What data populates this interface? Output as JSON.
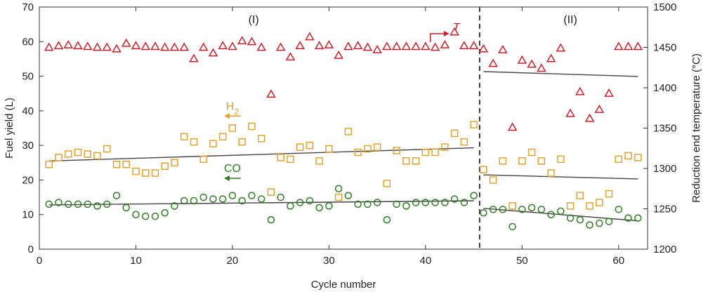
{
  "chart_data": {
    "type": "scatter",
    "title": "",
    "xlabel": "Cycle number",
    "ylabel": "Fuel yield (L)",
    "y2label": "Reduction end temperature (°C)",
    "xlim": [
      0,
      63
    ],
    "ylim": [
      0,
      70
    ],
    "y2lim": [
      1200,
      1500
    ],
    "x_ticks": [
      0,
      10,
      20,
      30,
      40,
      50,
      60
    ],
    "y_ticks": [
      0,
      10,
      20,
      30,
      40,
      50,
      60,
      70
    ],
    "y2_ticks": [
      1200,
      1250,
      1300,
      1350,
      1400,
      1450,
      1500
    ],
    "divider_x": 45.6,
    "regions": [
      "(I)",
      "(II)"
    ],
    "series": [
      {
        "name": "T",
        "axis": "right",
        "marker": "triangle",
        "color": "#cc1f2a",
        "x": [
          1,
          2,
          3,
          4,
          5,
          6,
          7,
          8,
          9,
          10,
          11,
          12,
          13,
          14,
          15,
          16,
          17,
          18,
          19,
          20,
          21,
          22,
          23,
          24,
          25,
          26,
          27,
          28,
          29,
          30,
          31,
          32,
          33,
          34,
          35,
          36,
          37,
          38,
          39,
          40,
          41,
          42,
          43,
          44,
          45,
          46,
          47,
          48,
          49,
          50,
          51,
          52,
          53,
          54,
          55,
          56,
          57,
          58,
          59,
          60,
          61,
          62
        ],
        "values": [
          1450,
          1452,
          1453,
          1452,
          1451,
          1450,
          1450,
          1448,
          1455,
          1452,
          1451,
          1451,
          1450,
          1450,
          1450,
          1436,
          1450,
          1443,
          1452,
          1451,
          1458,
          1457,
          1450,
          1392,
          1450,
          1438,
          1452,
          1463,
          1452,
          1453,
          1440,
          1451,
          1452,
          1450,
          1447,
          1451,
          1451,
          1451,
          1451,
          1451,
          1450,
          1453,
          1469,
          1452,
          1452,
          1448,
          1430,
          1447,
          1351,
          1434,
          1429,
          1424,
          1436,
          1449,
          1368,
          1395,
          1362,
          1373,
          1393,
          1451,
          1451,
          1451
        ]
      },
      {
        "name": "H2",
        "axis": "left",
        "marker": "square",
        "color": "#e0a230",
        "x": [
          1,
          2,
          3,
          4,
          5,
          6,
          7,
          8,
          9,
          10,
          11,
          12,
          13,
          14,
          15,
          16,
          17,
          18,
          19,
          20,
          21,
          22,
          23,
          24,
          25,
          26,
          27,
          28,
          29,
          30,
          31,
          32,
          33,
          34,
          35,
          36,
          37,
          38,
          39,
          40,
          41,
          42,
          43,
          44,
          45,
          46,
          47,
          48,
          49,
          50,
          51,
          52,
          53,
          54,
          55,
          56,
          57,
          58,
          59,
          60,
          61,
          62
        ],
        "values": [
          24.5,
          26.5,
          27.5,
          28,
          27.5,
          27,
          29,
          24.5,
          24.5,
          22.5,
          22,
          22,
          24,
          25,
          32.5,
          31,
          26,
          30.5,
          32.5,
          35,
          31,
          35.5,
          32,
          16.5,
          26.5,
          26,
          29.5,
          30,
          25.5,
          29,
          15,
          34,
          28,
          29,
          29.5,
          19,
          28.5,
          25.5,
          25.5,
          28,
          28,
          29.5,
          33.5,
          31,
          36,
          23,
          20,
          25.5,
          12.5,
          25.5,
          28,
          25.5,
          22,
          26,
          12.5,
          15.5,
          12.5,
          13.5,
          16,
          26,
          27,
          26.5
        ]
      },
      {
        "name": "CO",
        "axis": "left",
        "marker": "circle",
        "color": "#2e7d23",
        "x": [
          1,
          2,
          3,
          4,
          5,
          6,
          7,
          8,
          9,
          10,
          11,
          12,
          13,
          14,
          15,
          16,
          17,
          18,
          19,
          20,
          21,
          22,
          23,
          24,
          25,
          26,
          27,
          28,
          29,
          30,
          31,
          32,
          33,
          34,
          35,
          36,
          37,
          38,
          39,
          40,
          41,
          42,
          43,
          44,
          45,
          46,
          47,
          48,
          49,
          50,
          51,
          52,
          53,
          54,
          55,
          56,
          57,
          58,
          59,
          60,
          61,
          62
        ],
        "values": [
          13,
          13.5,
          13,
          13,
          13,
          12.5,
          13,
          15.5,
          12,
          10,
          9.5,
          9.5,
          10.5,
          12.5,
          14,
          14,
          15,
          14.5,
          14.5,
          15.5,
          14,
          15.5,
          14.5,
          8.5,
          15,
          12.5,
          13.5,
          14,
          12,
          12.5,
          17.5,
          15.5,
          13,
          13,
          13.5,
          8.5,
          13,
          12.5,
          13.5,
          13.5,
          13.5,
          13.5,
          14.5,
          13.5,
          15.5,
          10.5,
          11.5,
          11.5,
          6.5,
          11.5,
          12,
          11.5,
          10,
          11,
          9,
          8.5,
          7,
          7.5,
          8,
          11.5,
          9,
          9
        ]
      }
    ],
    "trend_lines": [
      {
        "series": "T",
        "axis": "right",
        "x": [
          46,
          62
        ],
        "y": [
          1420,
          1414
        ]
      },
      {
        "series": "H2",
        "axis": "left",
        "x": [
          1,
          45
        ],
        "y": [
          25.5,
          29.3
        ]
      },
      {
        "series": "H2",
        "axis": "left",
        "x": [
          46,
          62
        ],
        "y": [
          21.5,
          20.3
        ]
      },
      {
        "series": "CO",
        "axis": "left",
        "x": [
          1,
          45
        ],
        "y": [
          12.8,
          14.0
        ]
      },
      {
        "series": "CO",
        "axis": "left",
        "x": [
          46,
          62
        ],
        "y": [
          11.8,
          8.2
        ]
      }
    ],
    "annotations": [
      {
        "label": "T",
        "series": "T",
        "x": 40.5,
        "y": 62.3,
        "arrow_dir": "right"
      },
      {
        "label": "H2",
        "series": "H2",
        "x": 20,
        "y": 38.5,
        "arrow_dir": "left"
      },
      {
        "label": "CO",
        "series": "CO",
        "x": 20,
        "y": 20.5,
        "arrow_dir": "left"
      }
    ]
  }
}
